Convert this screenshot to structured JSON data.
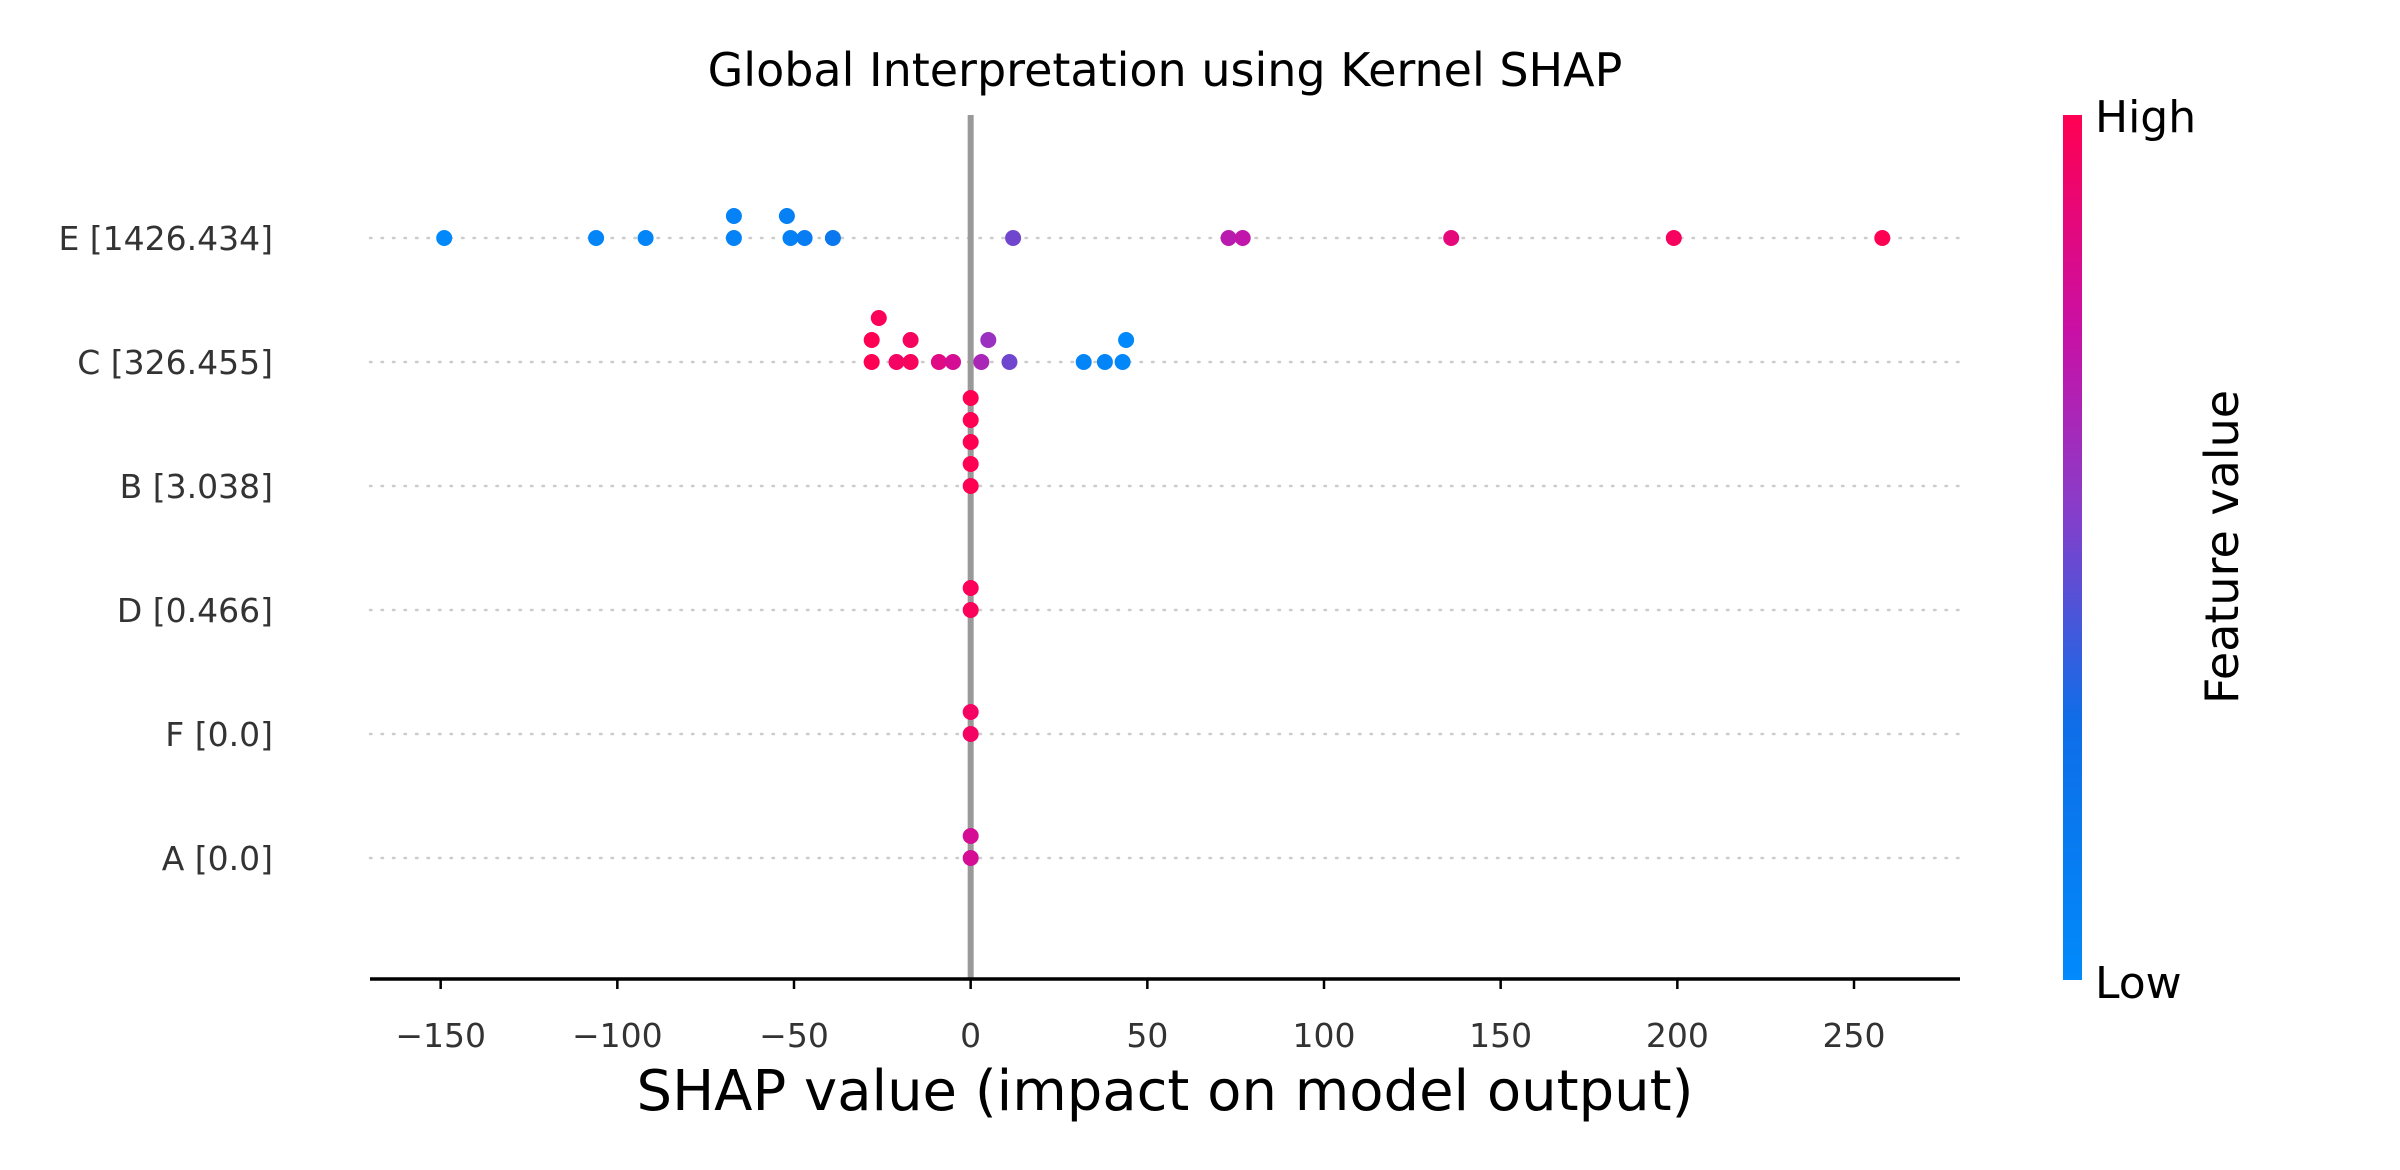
{
  "chart_data": {
    "type": "scatter",
    "subtype": "shap-beeswarm",
    "title": "Global Interpretation using Kernel SHAP",
    "xlabel": "SHAP value (impact on model output)",
    "xlim": [
      -170,
      280
    ],
    "xticks": [
      -150,
      -100,
      -50,
      0,
      50,
      100,
      150,
      200,
      250
    ],
    "xtick_labels": [
      "−150",
      "−100",
      "−50",
      "0",
      "50",
      "100",
      "150",
      "200",
      "250"
    ],
    "zero_line": true,
    "colorbar": {
      "title": "Feature value",
      "high_label": "High",
      "low_label": "Low",
      "high_color": "#ff0052",
      "low_color": "#008afb"
    },
    "features": [
      {
        "label": "E [1426.434]",
        "points": [
          {
            "x": -149,
            "c": 0.02
          },
          {
            "x": -106,
            "c": 0.05
          },
          {
            "x": -92,
            "c": 0.06
          },
          {
            "x": -67,
            "c": 0.08
          },
          {
            "x": -67,
            "c": 0.08
          },
          {
            "x": -51,
            "c": 0.09
          },
          {
            "x": -52,
            "c": 0.1
          },
          {
            "x": -47,
            "c": 0.15
          },
          {
            "x": -39,
            "c": 0.2
          },
          {
            "x": 12,
            "c": 0.5
          },
          {
            "x": 73,
            "c": 0.7
          },
          {
            "x": 77,
            "c": 0.72
          },
          {
            "x": 136,
            "c": 0.88
          },
          {
            "x": 199,
            "c": 0.96
          },
          {
            "x": 258,
            "c": 1.0
          }
        ]
      },
      {
        "label": "C [326.455]",
        "points": [
          {
            "x": -28,
            "c": 1.0
          },
          {
            "x": -28,
            "c": 1.0
          },
          {
            "x": -26,
            "c": 0.98
          },
          {
            "x": -17,
            "c": 0.97
          },
          {
            "x": -17,
            "c": 0.96
          },
          {
            "x": -21,
            "c": 0.95
          },
          {
            "x": -9,
            "c": 0.85
          },
          {
            "x": -5,
            "c": 0.8
          },
          {
            "x": 3,
            "c": 0.65
          },
          {
            "x": 5,
            "c": 0.6
          },
          {
            "x": 11,
            "c": 0.5
          },
          {
            "x": 32,
            "c": 0.05
          },
          {
            "x": 38,
            "c": 0.05
          },
          {
            "x": 43,
            "c": 0.03
          },
          {
            "x": 44,
            "c": 0.02
          }
        ]
      },
      {
        "label": "B [3.038]",
        "points": [
          {
            "x": 0,
            "c": 1.0
          },
          {
            "x": 0,
            "c": 1.0
          },
          {
            "x": 0,
            "c": 1.0
          },
          {
            "x": 0,
            "c": 1.0
          },
          {
            "x": 0,
            "c": 1.0
          }
        ]
      },
      {
        "label": "D [0.466]",
        "points": [
          {
            "x": 0,
            "c": 0.98
          },
          {
            "x": 0,
            "c": 0.98
          }
        ]
      },
      {
        "label": "F [0.0]",
        "points": [
          {
            "x": 0,
            "c": 0.95
          },
          {
            "x": 0,
            "c": 0.95
          }
        ]
      },
      {
        "label": "A [0.0]",
        "points": [
          {
            "x": 0,
            "c": 0.8
          },
          {
            "x": 0,
            "c": 0.8
          }
        ]
      }
    ]
  }
}
